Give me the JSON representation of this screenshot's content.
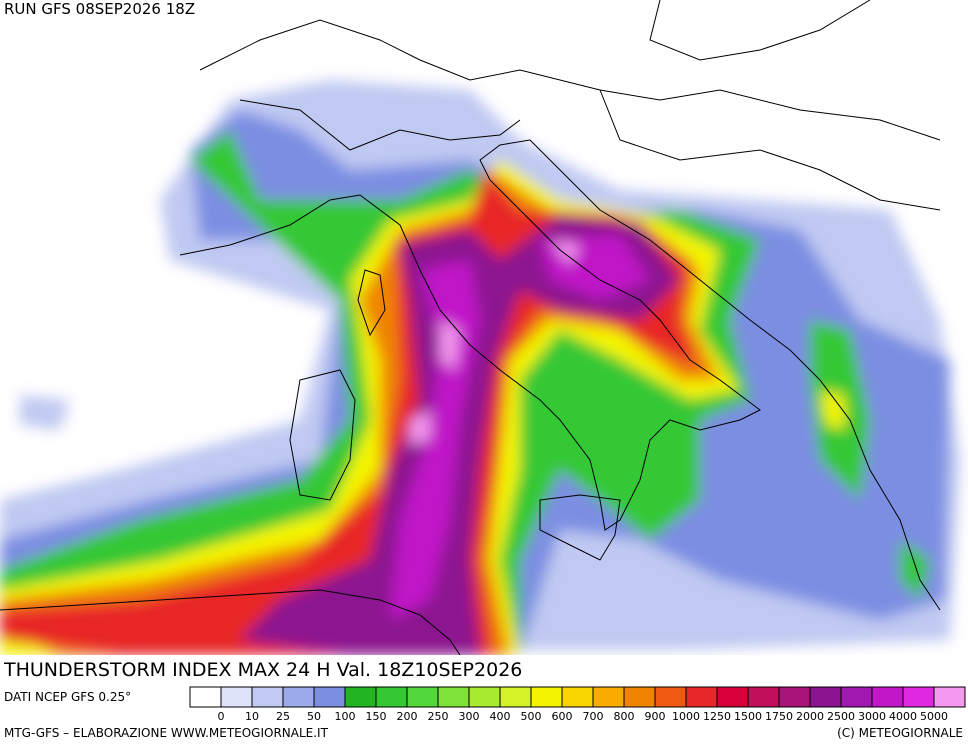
{
  "header": {
    "run": "RUN GFS 08SEP2026 18Z"
  },
  "title": "THUNDERSTORM INDEX MAX 24 H Val. 18Z10SEP2026",
  "source": "DATI NCEP GFS 0.25°",
  "legend": {
    "levels": [
      0,
      10,
      25,
      50,
      100,
      150,
      200,
      250,
      300,
      400,
      500,
      600,
      700,
      800,
      900,
      1000,
      1250,
      1500,
      1750,
      2000,
      2500,
      3000,
      4000,
      5000
    ],
    "colors": [
      "#ffffff",
      "#dde3f8",
      "#c0c9f2",
      "#9eabea",
      "#7c8ee2",
      "#22b422",
      "#34c834",
      "#52d83a",
      "#7ee23a",
      "#a8ea30",
      "#d4f228",
      "#f4f400",
      "#f8d400",
      "#f8ac00",
      "#f08400",
      "#f05a10",
      "#e82828",
      "#d8003a",
      "#c0105a",
      "#a81478",
      "#8c1490",
      "#a018b0",
      "#c018c8",
      "#e028e0",
      "#f498f0"
    ]
  },
  "footer": {
    "left": "MTG-GFS – ELABORAZIONE WWW.METEOGIORNALE.IT",
    "right": "(C) METEOGIORNALE"
  }
}
